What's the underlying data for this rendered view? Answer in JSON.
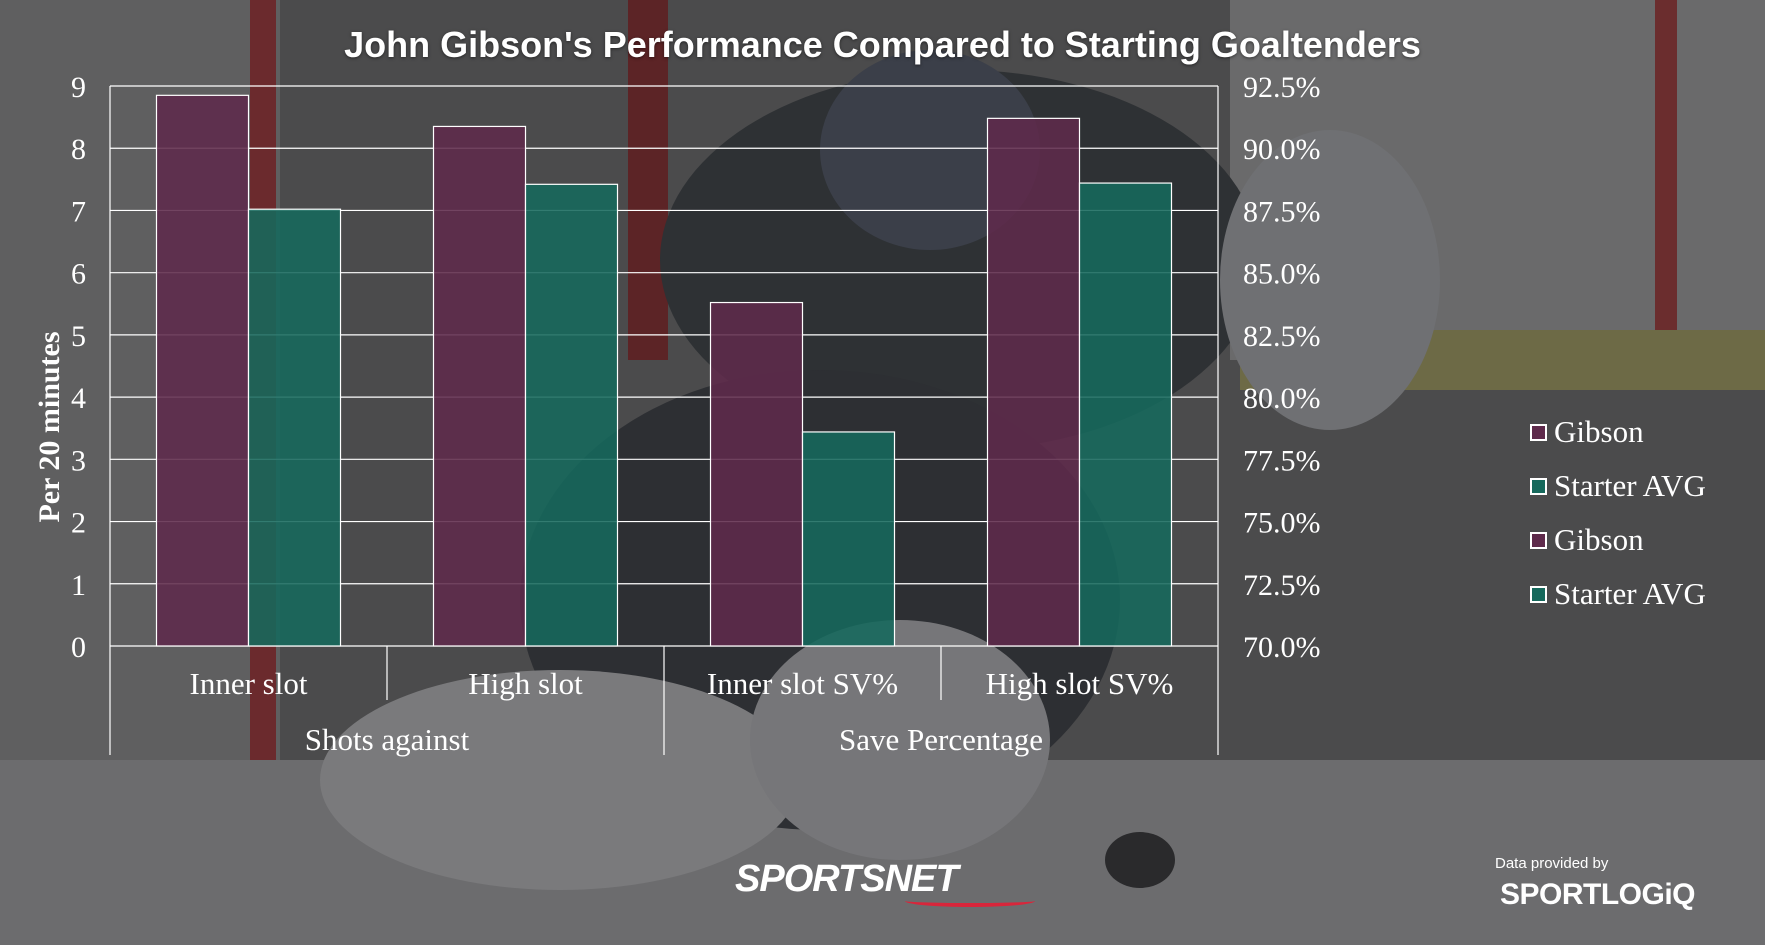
{
  "colors": {
    "gibson": "#5e2a4b",
    "starter": "#16695c",
    "grid": "#ffffff",
    "text": "#ffffff"
  },
  "chart_data": {
    "type": "bar",
    "title": "John Gibson's Performance Compared to Starting Goaltenders",
    "ylabel": "Per 20 minutes",
    "ylim": [
      0,
      9
    ],
    "y2lim": [
      70.0,
      92.5
    ],
    "yticks": [
      "0",
      "1",
      "2",
      "3",
      "4",
      "5",
      "6",
      "7",
      "8",
      "9"
    ],
    "y2ticks": [
      "70.0%",
      "72.5%",
      "75.0%",
      "77.5%",
      "80.0%",
      "82.5%",
      "85.0%",
      "87.5%",
      "90.0%",
      "92.5%"
    ],
    "grid": true,
    "legend_position": "right",
    "groups": [
      {
        "label": "Shots against",
        "axis": "left",
        "categories": [
          "Inner slot",
          "High slot"
        ],
        "series": [
          {
            "name": "Gibson",
            "values": [
              8.85,
              8.35
            ]
          },
          {
            "name": "Starter AVG",
            "values": [
              7.02,
              7.42
            ]
          }
        ]
      },
      {
        "label": "Save Percentage",
        "axis": "right",
        "categories": [
          "Inner slot SV%",
          "High slot SV%"
        ],
        "series": [
          {
            "name": "Gibson",
            "values": [
              83.8,
              91.2
            ]
          },
          {
            "name": "Starter AVG",
            "values": [
              78.6,
              88.6
            ]
          }
        ]
      }
    ],
    "legend": [
      {
        "name": "Gibson",
        "color": "#5e2a4b"
      },
      {
        "name": "Starter AVG",
        "color": "#16695c"
      },
      {
        "name": "Gibson",
        "color": "#5e2a4b"
      },
      {
        "name": "Starter AVG",
        "color": "#16695c"
      }
    ]
  },
  "branding": {
    "network": "SPORTSNET",
    "credit_caption": "Data provided by",
    "credit_logo": "SPORTLOGiQ"
  }
}
